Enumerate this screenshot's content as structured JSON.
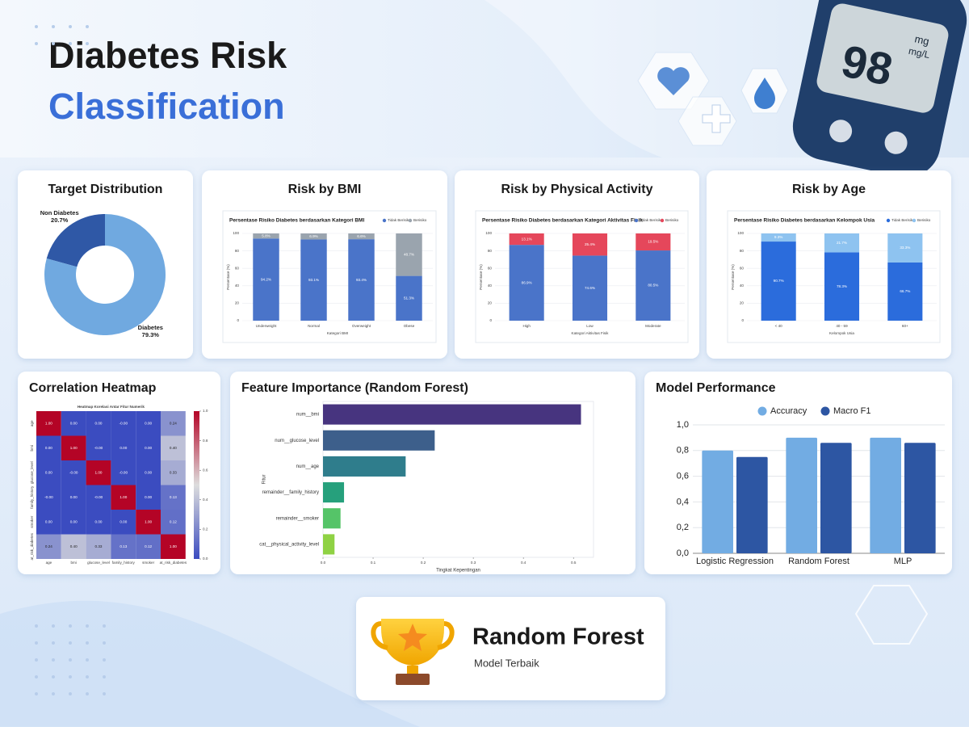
{
  "header": {
    "title_line1": "Diabetes Risk",
    "title_line2": "Classification",
    "meter_reading": "98",
    "meter_unit_top": "mg",
    "meter_unit_bottom": "mg/L"
  },
  "chart_data": [
    {
      "type": "pie",
      "title": "Target Distribution",
      "categories": [
        "Non Diabetes",
        "Diabetes"
      ],
      "values": [
        20.7,
        79.3
      ],
      "value_labels": [
        "20.7%",
        "79.3%"
      ],
      "colors": [
        "#2f58a6",
        "#70a9e0"
      ]
    },
    {
      "type": "stacked_bar",
      "title": "Risk by BMI",
      "subtitle": "Persentase Risiko Diabetes berdasarkan Kategori BMI",
      "xlabel": "Kategori BMI",
      "ylabel": "Persentase (%)",
      "categories": [
        "Underweight",
        "Normal",
        "Overweight",
        "Obese"
      ],
      "series": [
        {
          "name": "Tidak Berisiko",
          "color": "#4a74c9",
          "values": [
            94.2,
            93.1,
            93.4,
            51.3
          ],
          "value_labels": [
            "94.2%",
            "93.1%",
            "93.4%",
            "51.3%"
          ]
        },
        {
          "name": "Berisiko",
          "color": "#9aa4ae",
          "values": [
            5.8,
            6.9,
            6.6,
            48.7
          ],
          "value_labels": [
            "5.8%",
            "6.9%",
            "6.6%",
            "48.7%"
          ]
        }
      ],
      "ylim": [
        0,
        100
      ],
      "yticks": [
        0,
        20,
        40,
        60,
        80,
        100
      ],
      "legend": "top-right"
    },
    {
      "type": "stacked_bar",
      "title": "Risk by Physical Activity",
      "subtitle": "Persentase Risiko Diabetes berdasarkan Kategori Aktivitas Fisik",
      "xlabel": "Kategori Aktivitas Fisik",
      "ylabel": "Persentase (%)",
      "categories": [
        "High",
        "Low",
        "Moderate"
      ],
      "series": [
        {
          "name": "Tidak Berisiko",
          "color": "#4a74c9",
          "values": [
            86.9,
            74.6,
            80.5
          ],
          "value_labels": [
            "86.9%",
            "74.6%",
            "80.5%"
          ]
        },
        {
          "name": "Berisiko",
          "color": "#e5475b",
          "values": [
            13.1,
            25.4,
            19.5
          ],
          "value_labels": [
            "13.1%",
            "25.4%",
            "19.5%"
          ]
        }
      ],
      "ylim": [
        0,
        100
      ],
      "yticks": [
        0,
        20,
        40,
        60,
        80,
        100
      ],
      "legend": "top-right"
    },
    {
      "type": "stacked_bar",
      "title": "Risk by Age",
      "subtitle": "Persentase Risiko Diabetes berdasarkan Kelompok Usia",
      "xlabel": "Kelompok Usia",
      "ylabel": "Persentase (%)",
      "categories": [
        "< 40",
        "40 - 59",
        "60+"
      ],
      "series": [
        {
          "name": "Tidak Berisiko",
          "color": "#2b6cdc",
          "values": [
            90.7,
            78.3,
            66.7
          ],
          "value_labels": [
            "90.7%",
            "78.3%",
            "66.7%"
          ]
        },
        {
          "name": "Berisiko",
          "color": "#8ec3f0",
          "values": [
            9.3,
            21.7,
            33.3
          ],
          "value_labels": [
            "9.3%",
            "21.7%",
            "33.3%"
          ]
        }
      ],
      "ylim": [
        0,
        100
      ],
      "yticks": [
        0,
        20,
        40,
        60,
        80,
        100
      ],
      "legend": "top-right"
    },
    {
      "type": "heatmap",
      "title": "Correlation Heatmap",
      "subtitle": "Heatmap Korelasi Antar Fitur Numerik",
      "categories": [
        "age",
        "bmi",
        "glucose_level",
        "family_history",
        "smoker",
        "at_risk_diabetes"
      ],
      "values": [
        [
          1,
          0,
          0,
          0,
          0,
          0.24
        ],
        [
          0,
          1,
          0,
          0,
          0,
          0.4
        ],
        [
          0,
          0,
          1,
          0,
          0,
          0.33
        ],
        [
          0,
          0,
          0,
          1,
          0,
          0.13
        ],
        [
          0,
          0,
          0,
          0,
          1,
          0.12
        ],
        [
          0.24,
          0.4,
          0.33,
          0.13,
          0.12,
          1
        ]
      ],
      "value_labels": [
        [
          "1.00",
          "0.00",
          "0.00",
          "-0.00",
          "0.00",
          "0.24"
        ],
        [
          "0.00",
          "1.00",
          "-0.00",
          "0.00",
          "0.00",
          "0.40"
        ],
        [
          "0.00",
          "-0.00",
          "1.00",
          "-0.00",
          "0.00",
          "0.33"
        ],
        [
          "-0.00",
          "0.00",
          "-0.00",
          "1.00",
          "0.00",
          "0.13"
        ],
        [
          "0.00",
          "0.00",
          "0.00",
          "0.00",
          "1.00",
          "0.12"
        ],
        [
          "0.24",
          "0.40",
          "0.33",
          "0.13",
          "0.12",
          "1.00"
        ]
      ],
      "zlim": [
        0,
        1
      ],
      "zticks": [
        {
          "value": 0,
          "label": "0.0"
        },
        0.2,
        0.4,
        0.6,
        0.8,
        {
          "value": 1,
          "label": "1.0"
        }
      ],
      "colormap": [
        "#3b4cc0",
        "#dddddd",
        "#b40426"
      ]
    },
    {
      "type": "barh",
      "title": "Feature Importance (Random Forest)",
      "xlabel": "Tingkat Kepentingan",
      "ylabel": "Fitur",
      "categories": [
        "num__bmi",
        "num__glucose_level",
        "num__age",
        "remainder__family_history",
        "remainder__smoker",
        "cat__physical_activity_level"
      ],
      "values": [
        0.515,
        0.223,
        0.165,
        0.042,
        0.035,
        0.023
      ],
      "colors": [
        "#47347f",
        "#3d5f8b",
        "#2f7d8c",
        "#26a07c",
        "#55c468",
        "#8fd244"
      ],
      "xlim": [
        0,
        0.54
      ],
      "xticks": [
        {
          "value": 0,
          "label": "0.0"
        },
        0.1,
        0.2,
        0.3,
        0.4,
        0.5
      ]
    },
    {
      "type": "bar",
      "title": "Model Performance",
      "categories": [
        "Logistic Regression",
        "Random Forest",
        "MLP"
      ],
      "series": [
        {
          "name": "Accuracy",
          "color": "#72ace3",
          "values": [
            0.8,
            0.9,
            0.9
          ]
        },
        {
          "name": "Macro F1",
          "color": "#2d56a3",
          "values": [
            0.75,
            0.86,
            0.86
          ]
        }
      ],
      "ylim": [
        0,
        1
      ],
      "yticks": [
        {
          "value": 0,
          "label": "0,0"
        },
        {
          "value": 0.2,
          "label": "0,2"
        },
        {
          "value": 0.4,
          "label": "0,4"
        },
        {
          "value": 0.6,
          "label": "0,6"
        },
        {
          "value": 0.8,
          "label": "0,8"
        },
        {
          "value": 1,
          "label": "1,0"
        }
      ],
      "grid": true,
      "legend": "top"
    }
  ],
  "best_model": {
    "name": "Random Forest",
    "caption": "Model Terbaik"
  }
}
